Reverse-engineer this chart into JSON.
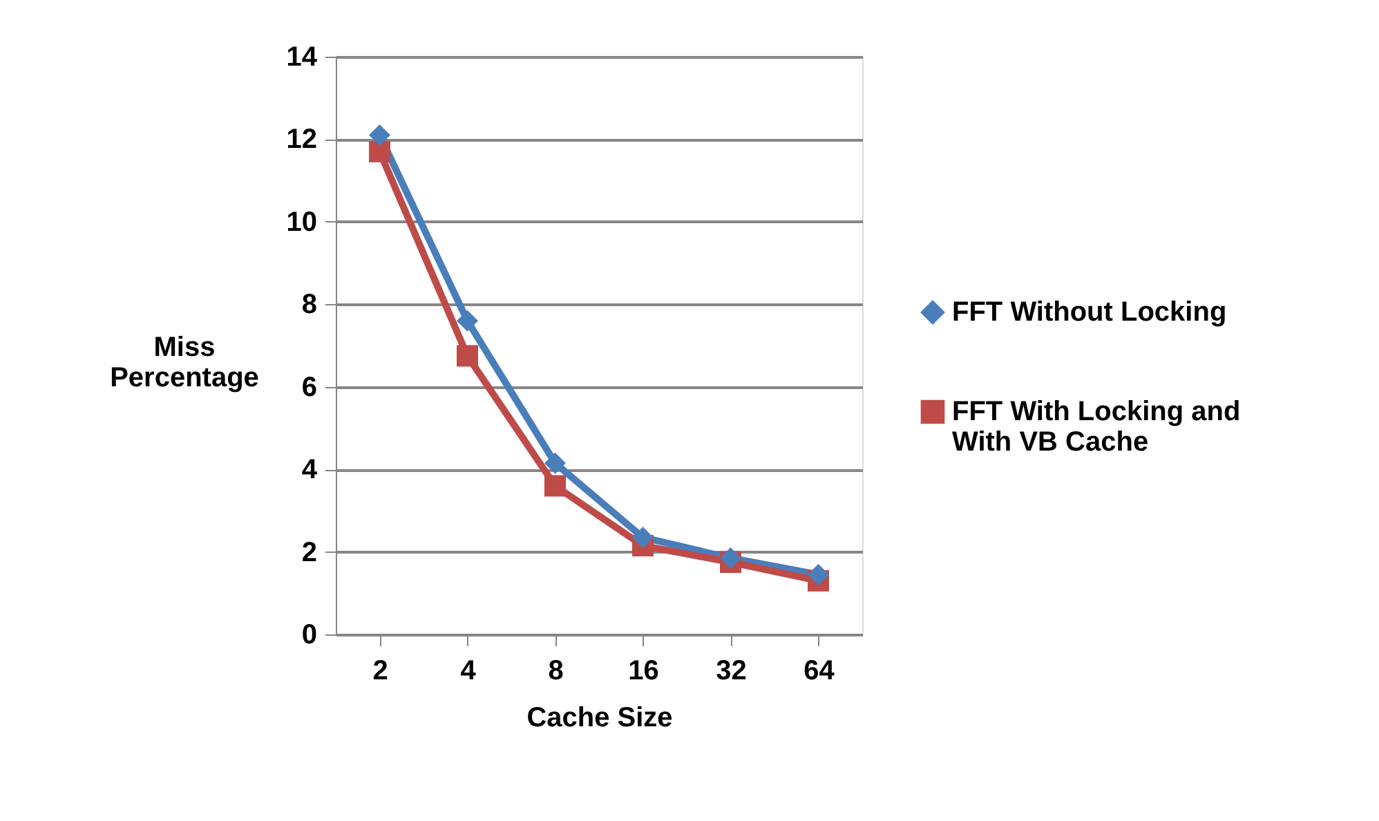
{
  "chart_data": {
    "type": "line",
    "xlabel": "Cache Size",
    "ylabel": "Miss Percentage",
    "categories": [
      "2",
      "4",
      "8",
      "16",
      "32",
      "64"
    ],
    "series": [
      {
        "name": "FFT Without Locking",
        "color": "#4a7ebb",
        "marker": "diamond",
        "values": [
          12.1,
          7.6,
          4.15,
          2.35,
          1.85,
          1.45
        ]
      },
      {
        "name": "FFT With Locking and With VB Cache",
        "color": "#be4b48",
        "marker": "square",
        "values": [
          11.7,
          6.75,
          3.6,
          2.15,
          1.75,
          1.3
        ]
      }
    ],
    "ylim": [
      0,
      14
    ],
    "yticks": [
      0,
      2,
      4,
      6,
      8,
      10,
      12,
      14
    ],
    "grid": "y",
    "legend": "right",
    "line_style": "solid"
  }
}
